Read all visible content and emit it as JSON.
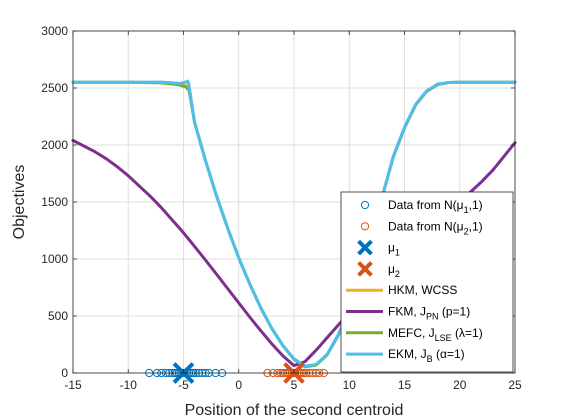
{
  "chart_data": {
    "type": "line",
    "xlabel": "Position of the second centroid",
    "ylabel": "Objectives",
    "xlim": [
      -15,
      25
    ],
    "ylim": [
      0,
      3000
    ],
    "xticks": [
      -15,
      -10,
      -5,
      0,
      5,
      10,
      15,
      20,
      25
    ],
    "yticks": [
      0,
      500,
      1000,
      1500,
      2000,
      2500,
      3000
    ],
    "grid": true,
    "legend_position": "bottom-right",
    "series": [
      {
        "name": "HKM, WCSS",
        "color": "#EDB120",
        "x": [
          -15,
          -10,
          -7,
          -5.5,
          -4.5,
          -4,
          -3,
          -2,
          -1,
          0,
          1,
          2,
          3,
          4,
          5,
          6,
          7,
          8,
          9,
          10,
          11,
          12,
          13,
          14,
          15,
          16,
          17,
          18,
          19,
          20,
          21,
          22,
          23,
          24,
          25
        ],
        "y": [
          2550,
          2550,
          2548,
          2540,
          2510,
          2200,
          1860,
          1550,
          1270,
          1010,
          780,
          570,
          390,
          240,
          120,
          55,
          70,
          160,
          330,
          560,
          840,
          1180,
          1550,
          1900,
          2150,
          2350,
          2470,
          2530,
          2548,
          2550,
          2550,
          2550,
          2550,
          2550,
          2550
        ]
      },
      {
        "name": "FKM, J_PN (p=1)",
        "label_main": "FKM, J",
        "label_sub": "PN",
        "label_tail": "(p=1)",
        "color": "#7E2F8E",
        "x": [
          -15,
          -14,
          -13,
          -12,
          -11,
          -10,
          -9,
          -8,
          -7,
          -6,
          -5,
          -4,
          -3,
          -2,
          -1,
          0,
          1,
          2,
          3,
          4,
          5,
          6,
          7,
          8,
          9,
          10,
          11,
          12,
          13,
          14,
          15,
          16,
          17,
          18,
          19,
          20,
          21,
          22,
          23,
          24,
          25
        ],
        "y": [
          2040,
          1990,
          1940,
          1880,
          1810,
          1730,
          1640,
          1550,
          1450,
          1340,
          1230,
          1110,
          990,
          865,
          740,
          615,
          490,
          370,
          255,
          150,
          65,
          100,
          200,
          310,
          420,
          530,
          640,
          750,
          855,
          955,
          1050,
          1140,
          1230,
          1320,
          1410,
          1500,
          1590,
          1680,
          1780,
          1900,
          2020
        ]
      },
      {
        "name": "MEFC, J_LSE (λ=1)",
        "label_main": "MEFC, J",
        "label_sub": "LSE",
        "label_tail": "(λ=1)",
        "color": "#77AC30",
        "x": [
          -15,
          -10,
          -7,
          -5.5,
          -4.8,
          -4.5,
          -4,
          -3,
          -2,
          -1,
          0,
          1,
          2,
          3,
          4,
          5,
          6,
          7,
          8,
          9,
          10,
          11,
          12,
          13,
          14,
          15,
          16,
          17,
          18,
          19,
          20,
          21,
          22,
          23,
          24,
          25
        ],
        "y": [
          2550,
          2550,
          2545,
          2530,
          2510,
          2480,
          2200,
          1860,
          1550,
          1270,
          1010,
          780,
          570,
          390,
          240,
          120,
          55,
          70,
          160,
          330,
          560,
          840,
          1180,
          1550,
          1900,
          2150,
          2350,
          2470,
          2530,
          2548,
          2550,
          2550,
          2550,
          2550,
          2550,
          2550
        ]
      },
      {
        "name": "EKM, J_B (α=1)",
        "label_main": "EKM, J",
        "label_sub": "B",
        "label_tail": "(α=1)",
        "color": "#4DBEEE",
        "x": [
          -15,
          -10,
          -7,
          -6,
          -5.5,
          -5,
          -4.6,
          -4.5,
          -4,
          -3,
          -2,
          -1,
          0,
          1,
          2,
          3,
          4,
          5,
          6,
          7,
          8,
          9,
          10,
          11,
          12,
          13,
          14,
          15,
          16,
          17,
          18,
          19,
          20,
          21,
          22,
          23,
          24,
          25
        ],
        "y": [
          2550,
          2550,
          2552,
          2545,
          2540,
          2545,
          2560,
          2520,
          2200,
          1860,
          1550,
          1270,
          1010,
          780,
          570,
          390,
          240,
          125,
          60,
          75,
          165,
          335,
          565,
          845,
          1185,
          1555,
          1905,
          2155,
          2355,
          2475,
          2535,
          2548,
          2550,
          2550,
          2550,
          2550,
          2550,
          2550
        ]
      }
    ],
    "scatter": [
      {
        "name": "Data from N(μ1,1)",
        "label_main": "Data from N(μ",
        "label_sub": "1",
        "label_tail": ",1)",
        "color": "#0072BD",
        "x": [
          -8.1,
          -7.4,
          -7.0,
          -6.6,
          -6.3,
          -6.0,
          -5.8,
          -5.6,
          -5.4,
          -5.2,
          -5.0,
          -4.9,
          -4.7,
          -4.5,
          -4.3,
          -4.1,
          -3.9,
          -3.6,
          -3.3,
          -3.0,
          -2.7,
          -2.1,
          -1.5
        ],
        "y": [
          0,
          0,
          0,
          0,
          0,
          0,
          0,
          0,
          0,
          0,
          0,
          0,
          0,
          0,
          0,
          0,
          0,
          0,
          0,
          0,
          0,
          0,
          0
        ]
      },
      {
        "name": "Data from N(μ2,1)",
        "label_main": "Data from N(μ",
        "label_sub": "2",
        "label_tail": ",1)",
        "color": "#D95319",
        "x": [
          2.6,
          3.1,
          3.5,
          3.8,
          4.0,
          4.2,
          4.4,
          4.6,
          4.8,
          5.0,
          5.1,
          5.3,
          5.5,
          5.7,
          5.9,
          6.1,
          6.4,
          6.7,
          7.0,
          7.3,
          7.7
        ],
        "y": [
          0,
          0,
          0,
          0,
          0,
          0,
          0,
          0,
          0,
          0,
          0,
          0,
          0,
          0,
          0,
          0,
          0,
          0,
          0,
          0,
          0
        ]
      }
    ],
    "markers": [
      {
        "name": "μ1",
        "label_main": "μ",
        "label_sub": "1",
        "color": "#0072BD",
        "x": -5,
        "y": 0
      },
      {
        "name": "μ2",
        "label_main": "μ",
        "label_sub": "2",
        "color": "#D95319",
        "x": 5,
        "y": 0
      }
    ]
  }
}
